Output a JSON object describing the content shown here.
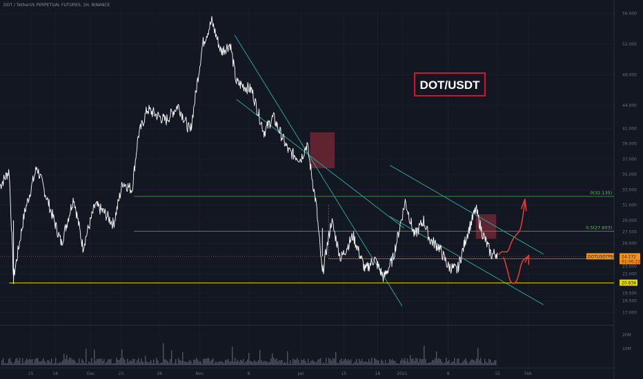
{
  "header": {
    "title": "DOT / TetherUS PERPETUAL FUTURES, 2H, BINANCE"
  },
  "chart_data": {
    "type": "line",
    "title": "DOT/USDT",
    "ylim": [
      15.5,
      56.5
    ],
    "y_ticks": [
      "56.000",
      "52.000",
      "48.000",
      "44.000",
      "41.000",
      "39.000",
      "37.000",
      "35.000",
      "33.000",
      "31.000",
      "29.000",
      "27.500",
      "26.000",
      "24.500",
      "23.000",
      "22.000",
      "20.834",
      "19.500",
      "18.500",
      "17.000"
    ],
    "y_tick_values": [
      56,
      52,
      48,
      44,
      41,
      39,
      37,
      35,
      33,
      31,
      29,
      27.5,
      26,
      24.5,
      23,
      22,
      20.834,
      19.5,
      18.5,
      17
    ],
    "x_ticks": [
      "15",
      "18",
      "Dec",
      "23",
      "26",
      "Nov",
      "8",
      "Jan",
      "15",
      "18",
      "2021",
      "8",
      "15",
      "Feb"
    ],
    "x_tick_pos": [
      0.05,
      0.09,
      0.148,
      0.197,
      0.26,
      0.325,
      0.405,
      0.49,
      0.56,
      0.615,
      0.655,
      0.73,
      0.81,
      0.86
    ],
    "price_anchors": [
      [
        0.0,
        33.5
      ],
      [
        0.015,
        35.5
      ],
      [
        0.022,
        21.5
      ],
      [
        0.04,
        30
      ],
      [
        0.06,
        36
      ],
      [
        0.08,
        31
      ],
      [
        0.1,
        26
      ],
      [
        0.12,
        32
      ],
      [
        0.135,
        25.5
      ],
      [
        0.155,
        31
      ],
      [
        0.17,
        30
      ],
      [
        0.185,
        28.5
      ],
      [
        0.2,
        34
      ],
      [
        0.215,
        33
      ],
      [
        0.225,
        40
      ],
      [
        0.24,
        43.5
      ],
      [
        0.27,
        42
      ],
      [
        0.29,
        44
      ],
      [
        0.31,
        40.5
      ],
      [
        0.33,
        52
      ],
      [
        0.345,
        55
      ],
      [
        0.36,
        51
      ],
      [
        0.375,
        52
      ],
      [
        0.385,
        47
      ],
      [
        0.41,
        46
      ],
      [
        0.43,
        40.5
      ],
      [
        0.445,
        42.5
      ],
      [
        0.47,
        38
      ],
      [
        0.49,
        37
      ],
      [
        0.5,
        39
      ],
      [
        0.515,
        31
      ],
      [
        0.525,
        22
      ],
      [
        0.54,
        29
      ],
      [
        0.555,
        24
      ],
      [
        0.575,
        27
      ],
      [
        0.595,
        22.5
      ],
      [
        0.61,
        24
      ],
      [
        0.625,
        21.5
      ],
      [
        0.64,
        24
      ],
      [
        0.66,
        31.5
      ],
      [
        0.675,
        27
      ],
      [
        0.69,
        29
      ],
      [
        0.7,
        26.5
      ],
      [
        0.715,
        25.5
      ],
      [
        0.73,
        23
      ],
      [
        0.745,
        22.5
      ],
      [
        0.76,
        27
      ],
      [
        0.775,
        30.5
      ],
      [
        0.785,
        27.5
      ],
      [
        0.8,
        24.5
      ],
      [
        0.81,
        24.8
      ]
    ],
    "fib_levels": [
      {
        "label": "0(32.135)",
        "value": 32.135
      },
      {
        "label": "0.5(27.603)",
        "value": 27.603
      },
      {
        "label": "",
        "value": 24.0
      }
    ],
    "support_level": {
      "label": "20.834",
      "value": 20.834
    },
    "current_price": {
      "symbol": "DOTUSDTPERP",
      "value": "24.272",
      "timer": "01:06:22"
    },
    "colors": {
      "background": "#131722",
      "price_line": "#ffffff",
      "fib": "#4caf50",
      "fib_label": "#66bb6a",
      "channel": "#26a69a",
      "support": "#e6d600",
      "supply_zone": "#7a2a35",
      "projection": "#e53935",
      "current_price": "#f7931a",
      "volume": "#5d6270"
    }
  }
}
